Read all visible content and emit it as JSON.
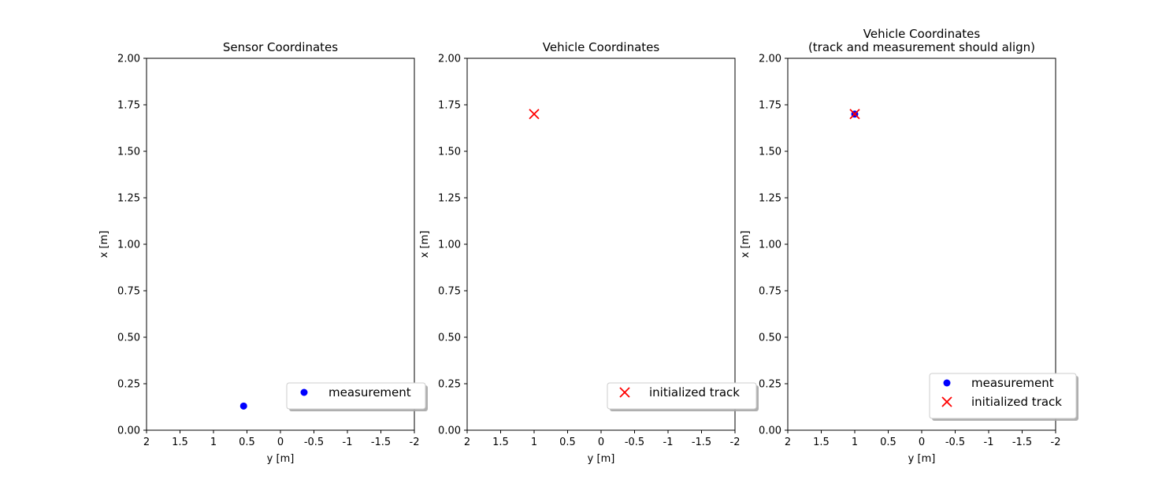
{
  "chart_data": [
    {
      "type": "scatter",
      "title": "Sensor Coordinates",
      "xlabel": "y [m]",
      "ylabel": "x [m]",
      "xlim": [
        2,
        -2
      ],
      "ylim": [
        0,
        2.0
      ],
      "x_ticks": [
        "2",
        "1.5",
        "1",
        "0.5",
        "0",
        "-0.5",
        "-1",
        "-1.5",
        "-2"
      ],
      "y_ticks": [
        "0.00",
        "0.25",
        "0.50",
        "0.75",
        "1.00",
        "1.25",
        "1.50",
        "1.75",
        "2.00"
      ],
      "grid": false,
      "legend_position": "lower-right",
      "series": [
        {
          "name": "measurement",
          "marker": "circle",
          "color": "#0000ff",
          "points": [
            {
              "x": 0.55,
              "y": 0.13
            }
          ]
        }
      ]
    },
    {
      "type": "scatter",
      "title": "Vehicle Coordinates",
      "xlabel": "y [m]",
      "ylabel": "x [m]",
      "xlim": [
        2,
        -2
      ],
      "ylim": [
        0,
        2.0
      ],
      "x_ticks": [
        "2",
        "1.5",
        "1",
        "0.5",
        "0",
        "-0.5",
        "-1",
        "-1.5",
        "-2"
      ],
      "y_ticks": [
        "0.00",
        "0.25",
        "0.50",
        "0.75",
        "1.00",
        "1.25",
        "1.50",
        "1.75",
        "2.00"
      ],
      "grid": false,
      "legend_position": "lower-right",
      "series": [
        {
          "name": "initialized track",
          "marker": "x",
          "color": "#ff0000",
          "points": [
            {
              "x": 1.0,
              "y": 1.7
            }
          ]
        }
      ]
    },
    {
      "type": "scatter",
      "title": "Vehicle Coordinates\n(track and measurement should align)",
      "title_lines": [
        "Vehicle Coordinates",
        "(track and measurement should align)"
      ],
      "xlabel": "y [m]",
      "ylabel": "x [m]",
      "xlim": [
        2,
        -2
      ],
      "ylim": [
        0,
        2.0
      ],
      "x_ticks": [
        "2",
        "1.5",
        "1",
        "0.5",
        "0",
        "-0.5",
        "-1",
        "-1.5",
        "-2"
      ],
      "y_ticks": [
        "0.00",
        "0.25",
        "0.50",
        "0.75",
        "1.00",
        "1.25",
        "1.50",
        "1.75",
        "2.00"
      ],
      "grid": false,
      "legend_position": "lower-right",
      "series": [
        {
          "name": "measurement",
          "marker": "circle",
          "color": "#0000ff",
          "points": [
            {
              "x": 1.0,
              "y": 1.7
            }
          ]
        },
        {
          "name": "initialized track",
          "marker": "x",
          "color": "#ff0000",
          "points": [
            {
              "x": 1.0,
              "y": 1.7
            }
          ]
        }
      ]
    }
  ]
}
